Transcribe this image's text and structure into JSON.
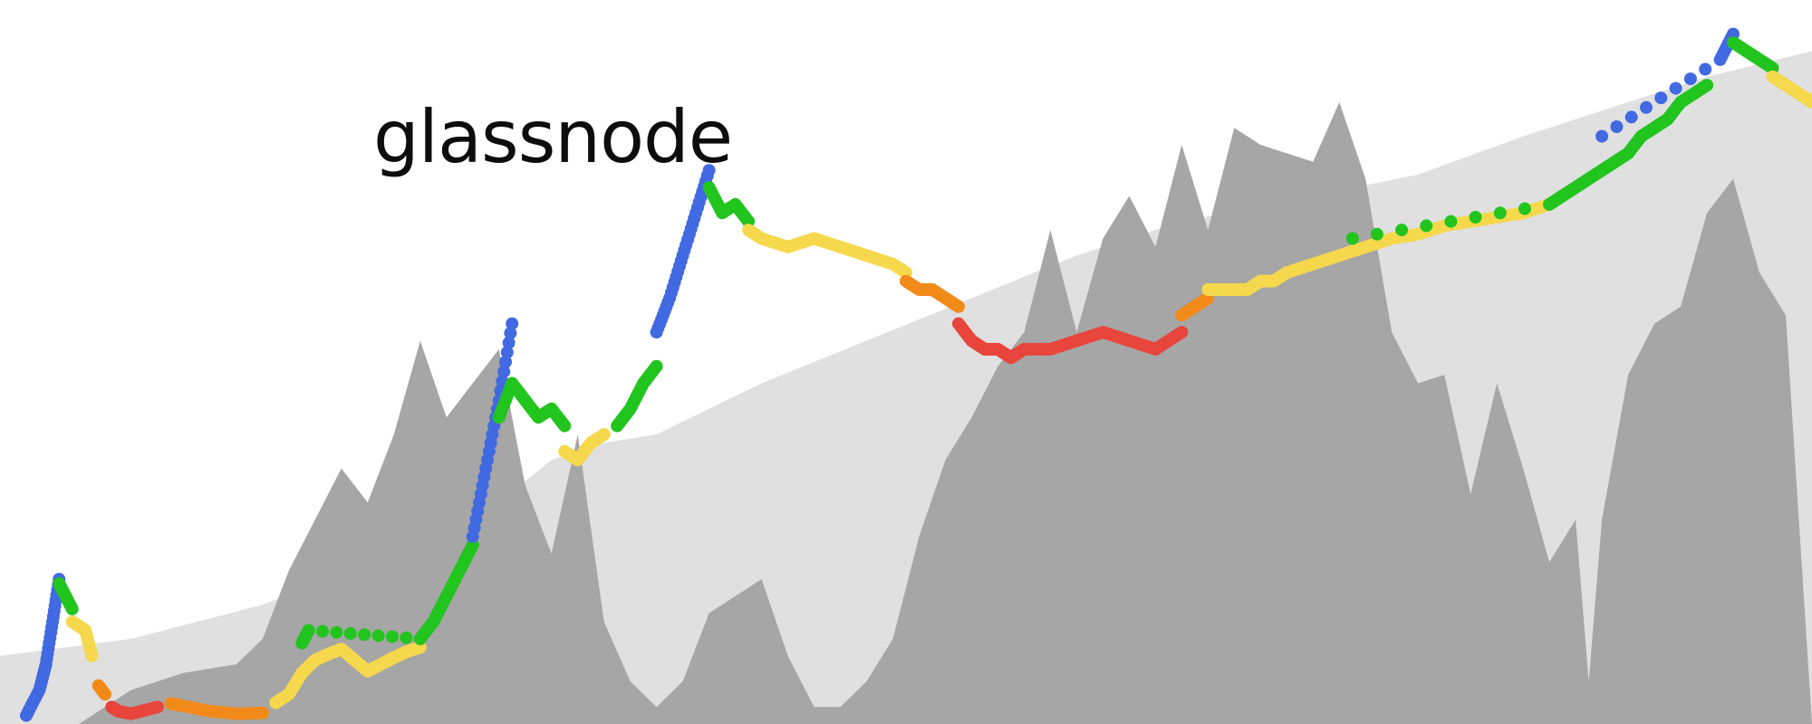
{
  "logo": {
    "text": "glassnode"
  },
  "chart_data": {
    "type": "scatter",
    "title": "",
    "xlabel": "",
    "ylabel": "",
    "y_scale": "log",
    "grid": false,
    "legend": "none",
    "colors": {
      "upper_area": "#e0e0e0",
      "lower_area": "#a6a6a6",
      "blue": "#4169e1",
      "green": "#22c41e",
      "yellow": "#f5d84c",
      "orange": "#f28a1a",
      "red": "#e8453c"
    },
    "upper_area": [
      [
        0,
        8
      ],
      [
        10,
        10
      ],
      [
        20,
        14
      ],
      [
        30,
        20
      ],
      [
        38,
        26
      ],
      [
        42,
        31
      ],
      [
        46,
        33
      ],
      [
        50,
        34
      ],
      [
        58,
        40
      ],
      [
        66,
        45
      ],
      [
        74,
        50
      ],
      [
        82,
        55
      ],
      [
        90,
        59
      ],
      [
        100,
        62
      ],
      [
        108,
        64.5
      ],
      [
        116,
        69
      ],
      [
        124,
        73
      ],
      [
        130,
        76
      ],
      [
        138,
        79
      ]
    ],
    "lower_area": [
      [
        0,
        0
      ],
      [
        6,
        0
      ],
      [
        10,
        4
      ],
      [
        14,
        6
      ],
      [
        18,
        7
      ],
      [
        20,
        10
      ],
      [
        22,
        18
      ],
      [
        24,
        24
      ],
      [
        26,
        30
      ],
      [
        28,
        26
      ],
      [
        30,
        34
      ],
      [
        32,
        45
      ],
      [
        34,
        36
      ],
      [
        36,
        40
      ],
      [
        38,
        44
      ],
      [
        40,
        28
      ],
      [
        42,
        20
      ],
      [
        44,
        34
      ],
      [
        46,
        12
      ],
      [
        48,
        5
      ],
      [
        50,
        2
      ],
      [
        52,
        5
      ],
      [
        54,
        13
      ],
      [
        56,
        15
      ],
      [
        58,
        17
      ],
      [
        60,
        8
      ],
      [
        62,
        2
      ],
      [
        64,
        2
      ],
      [
        66,
        5
      ],
      [
        68,
        10
      ],
      [
        70,
        22
      ],
      [
        72,
        31
      ],
      [
        74,
        36
      ],
      [
        76,
        42
      ],
      [
        78,
        46
      ],
      [
        80,
        58
      ],
      [
        82,
        46
      ],
      [
        84,
        57
      ],
      [
        86,
        62
      ],
      [
        88,
        56
      ],
      [
        90,
        68
      ],
      [
        92,
        58
      ],
      [
        94,
        70
      ],
      [
        96,
        68
      ],
      [
        98,
        67
      ],
      [
        100,
        66
      ],
      [
        102,
        73
      ],
      [
        104,
        64
      ],
      [
        106,
        46
      ],
      [
        108,
        40
      ],
      [
        110,
        41
      ],
      [
        112,
        27
      ],
      [
        114,
        40
      ],
      [
        116,
        30
      ],
      [
        118,
        19
      ],
      [
        120,
        24
      ],
      [
        121,
        5
      ],
      [
        122,
        24
      ],
      [
        124,
        41
      ],
      [
        126,
        47
      ],
      [
        128,
        49
      ],
      [
        130,
        60
      ],
      [
        132,
        64
      ],
      [
        134,
        53
      ],
      [
        136,
        48
      ],
      [
        138,
        0
      ]
    ],
    "series": [
      {
        "color": "blue",
        "points": [
          [
            2,
            1
          ],
          [
            3,
            4
          ],
          [
            3.5,
            7
          ],
          [
            4,
            12
          ],
          [
            4.5,
            17
          ]
        ]
      },
      {
        "color": "green",
        "points": [
          [
            4.5,
            16.5
          ],
          [
            5,
            15
          ],
          [
            5.5,
            13.5
          ]
        ]
      },
      {
        "color": "yellow",
        "points": [
          [
            5.5,
            12
          ],
          [
            6,
            11.5
          ],
          [
            6.5,
            11
          ],
          [
            7,
            8
          ]
        ]
      },
      {
        "color": "orange",
        "points": [
          [
            7.5,
            4.5
          ],
          [
            8,
            3.5
          ]
        ]
      },
      {
        "color": "red",
        "points": [
          [
            8.5,
            2
          ],
          [
            9,
            1.5
          ],
          [
            10,
            1.2
          ],
          [
            12,
            2
          ]
        ]
      },
      {
        "color": "orange",
        "points": [
          [
            13,
            2.4
          ],
          [
            14,
            2.1
          ],
          [
            16,
            1.5
          ],
          [
            18,
            1.2
          ],
          [
            20,
            1.3
          ]
        ]
      },
      {
        "color": "yellow",
        "points": [
          [
            21,
            2.5
          ],
          [
            22,
            3.5
          ],
          [
            23,
            6
          ],
          [
            24,
            7.5
          ],
          [
            25,
            8.2
          ],
          [
            26,
            8.8
          ],
          [
            27,
            7.5
          ],
          [
            28,
            6.2
          ],
          [
            29,
            7
          ],
          [
            30,
            7.8
          ],
          [
            31,
            8.5
          ],
          [
            32,
            9
          ]
        ]
      },
      {
        "color": "green",
        "points": [
          [
            23,
            9.5
          ],
          [
            23.5,
            11
          ],
          [
            32,
            10
          ],
          [
            33,
            12
          ],
          [
            34,
            15
          ],
          [
            35,
            18
          ],
          [
            36,
            21
          ]
        ]
      },
      {
        "color": "blue",
        "points": [
          [
            36,
            22
          ],
          [
            37,
            30
          ],
          [
            38,
            38
          ],
          [
            39,
            47
          ]
        ]
      },
      {
        "color": "green",
        "points": [
          [
            38,
            36
          ],
          [
            39,
            40
          ],
          [
            40,
            38
          ],
          [
            41,
            36
          ],
          [
            42,
            37
          ],
          [
            43,
            35
          ]
        ]
      },
      {
        "color": "yellow",
        "points": [
          [
            43,
            32
          ],
          [
            44,
            31
          ],
          [
            45,
            33
          ],
          [
            46,
            34
          ]
        ]
      },
      {
        "color": "green",
        "points": [
          [
            47,
            35
          ],
          [
            48,
            37
          ],
          [
            49,
            40
          ],
          [
            50,
            42
          ]
        ]
      },
      {
        "color": "blue",
        "points": [
          [
            50,
            46
          ],
          [
            51,
            50
          ],
          [
            52,
            55
          ],
          [
            53,
            60
          ],
          [
            54,
            65
          ]
        ]
      },
      {
        "color": "green",
        "points": [
          [
            54,
            63
          ],
          [
            55,
            60
          ],
          [
            56,
            61
          ],
          [
            57,
            59
          ]
        ]
      },
      {
        "color": "yellow",
        "points": [
          [
            57,
            58
          ],
          [
            58,
            57
          ],
          [
            60,
            56
          ],
          [
            62,
            57
          ],
          [
            64,
            56
          ],
          [
            66,
            55
          ],
          [
            68,
            54
          ],
          [
            69,
            53
          ]
        ]
      },
      {
        "color": "orange",
        "points": [
          [
            69,
            52
          ],
          [
            70,
            51
          ],
          [
            71,
            51
          ],
          [
            72,
            50
          ],
          [
            73,
            49
          ]
        ]
      },
      {
        "color": "red",
        "points": [
          [
            73,
            47
          ],
          [
            74,
            45
          ],
          [
            75,
            44
          ],
          [
            76,
            44
          ],
          [
            77,
            43
          ],
          [
            78,
            44
          ],
          [
            80,
            44
          ],
          [
            82,
            45
          ],
          [
            84,
            46
          ],
          [
            86,
            45
          ],
          [
            88,
            44
          ],
          [
            90,
            46
          ]
        ]
      },
      {
        "color": "orange",
        "points": [
          [
            90,
            48
          ],
          [
            91,
            49
          ],
          [
            92,
            50
          ]
        ]
      },
      {
        "color": "yellow",
        "points": [
          [
            92,
            51
          ],
          [
            93,
            51
          ],
          [
            94,
            51
          ],
          [
            95,
            51
          ],
          [
            96,
            52
          ],
          [
            97,
            52
          ],
          [
            98,
            53
          ],
          [
            100,
            54
          ],
          [
            102,
            55
          ],
          [
            104,
            56
          ],
          [
            106,
            57
          ],
          [
            108,
            57.5
          ],
          [
            110,
            58.5
          ],
          [
            112,
            59
          ],
          [
            114,
            59.5
          ],
          [
            116,
            60
          ],
          [
            118,
            61
          ]
        ]
      },
      {
        "color": "green",
        "points": [
          [
            103,
            57
          ],
          [
            118,
            61
          ],
          [
            119,
            62
          ],
          [
            120,
            63
          ],
          [
            121,
            64
          ],
          [
            122,
            65
          ],
          [
            123,
            66
          ],
          [
            124,
            67
          ],
          [
            125,
            69
          ],
          [
            126,
            70
          ],
          [
            127,
            71
          ],
          [
            128,
            73
          ],
          [
            129,
            74
          ],
          [
            130,
            75
          ]
        ]
      },
      {
        "color": "blue",
        "points": [
          [
            122,
            69
          ],
          [
            131,
            78
          ],
          [
            132,
            81
          ]
        ]
      },
      {
        "color": "green",
        "points": [
          [
            132,
            80
          ],
          [
            133,
            79
          ],
          [
            134,
            78
          ],
          [
            135,
            77
          ]
        ]
      },
      {
        "color": "yellow",
        "points": [
          [
            135,
            76
          ],
          [
            136,
            75
          ],
          [
            137,
            74
          ],
          [
            138,
            73
          ]
        ]
      }
    ]
  }
}
